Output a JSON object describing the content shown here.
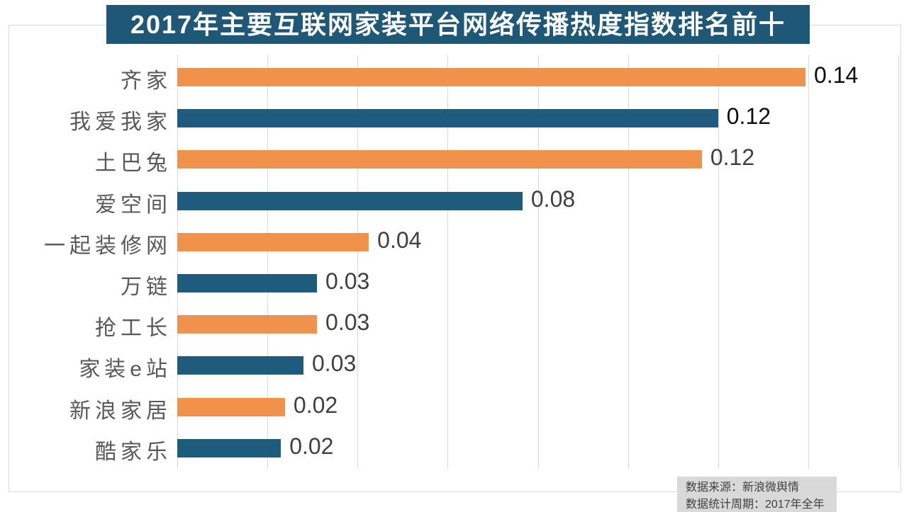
{
  "title": "2017年主要互联网家装平台网络传播热度指数排名前十",
  "source_note": {
    "line1": "数据来源：新浪微舆情",
    "line2": "数据统计周期：2017年全年"
  },
  "colors": {
    "title_bg": "#1f5876",
    "title_text": "#ffffff",
    "bar_orange": "#f0924b",
    "bar_blue": "#1e5b7c",
    "gridline": "#d9d9d9",
    "chart_border": "#d9d9d9",
    "category_text": "#595959",
    "value_text": "#404040",
    "value_text_emphasized": "#0d0d0d",
    "note_bg": "#d9d9d9",
    "note_text": "#404040"
  },
  "chart_data": {
    "type": "bar",
    "orientation": "horizontal",
    "title": "2017年主要互联网家装平台网络传播热度指数排名前十",
    "xlabel": "",
    "ylabel": "",
    "categories": [
      "齐家",
      "我爱我家",
      "土巴兔",
      "爱空间",
      "一起装修网",
      "万链",
      "抢工长",
      "家装e站",
      "新浪家居",
      "酷家乐"
    ],
    "values": [
      0.14,
      0.12,
      0.12,
      0.08,
      0.04,
      0.03,
      0.03,
      0.03,
      0.02,
      0.02
    ],
    "value_labels": [
      "0.14",
      "0.12",
      "0.12",
      "0.08",
      "0.04",
      "0.03",
      "0.03",
      "0.03",
      "0.02",
      "0.02"
    ],
    "bar_lengths_estimated": [
      0.1394,
      0.12,
      0.1164,
      0.0766,
      0.0425,
      0.031,
      0.031,
      0.028,
      0.0239,
      0.023
    ],
    "bar_color_keys": [
      "bar_orange",
      "bar_blue",
      "bar_orange",
      "bar_blue",
      "bar_orange",
      "bar_blue",
      "bar_orange",
      "bar_blue",
      "bar_orange",
      "bar_blue"
    ],
    "value_label_emphasized": [
      true,
      true,
      false,
      false,
      false,
      false,
      false,
      false,
      false,
      false
    ],
    "xlim": [
      0,
      0.16
    ],
    "grid_interval": 0.02,
    "grid": true,
    "legend": false,
    "data_label_position": "outside-end"
  }
}
